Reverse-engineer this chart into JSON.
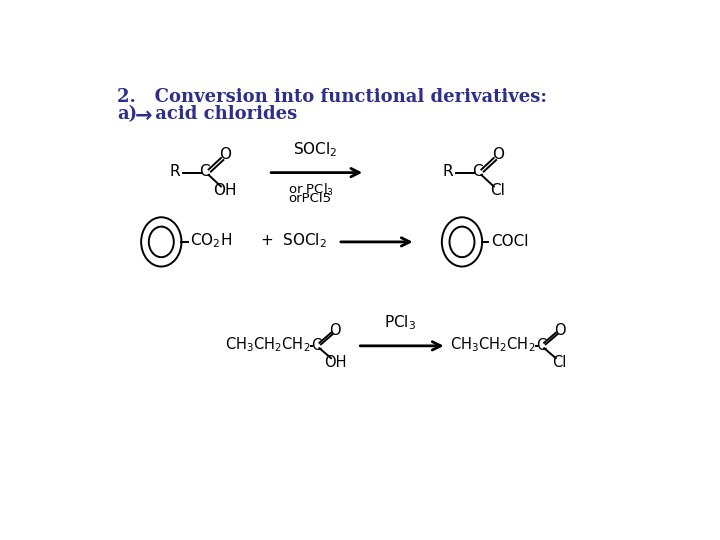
{
  "bg_color": "#ffffff",
  "title_color": "#2e2e8b",
  "text_color": "#000000",
  "title1": "2.   Conversion into functional derivatives:",
  "title2_a": "a)",
  "title2_arrow": "→",
  "title2_b": " acid chlorides",
  "fig_width": 7.2,
  "fig_height": 5.4,
  "dpi": 100
}
